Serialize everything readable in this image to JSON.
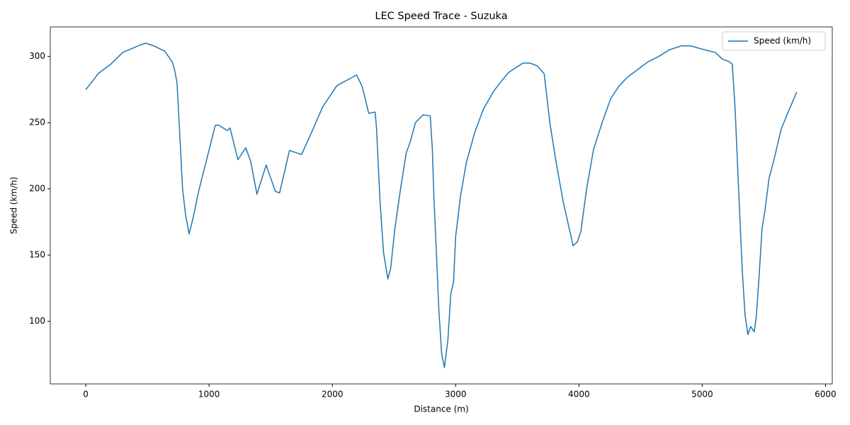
{
  "chart_data": {
    "type": "line",
    "title": "LEC Speed Trace - Suzuka",
    "x_label": "Distance (m)",
    "y_label": "Speed (km/h)",
    "xlim": [
      -288,
      6055
    ],
    "ylim": [
      52.7,
      322.3
    ],
    "xticks": [
      0,
      1000,
      2000,
      3000,
      4000,
      5000,
      6000
    ],
    "yticks": [
      100,
      150,
      200,
      250,
      300
    ],
    "grid": false,
    "legend": "upper-right",
    "series": [
      {
        "name": "Speed (km/h)",
        "color": "#1f77b4",
        "x": [
          0,
          60,
          100,
          200,
          300,
          400,
          450,
          488,
          550,
          640,
          700,
          720,
          740,
          760,
          785,
          810,
          838,
          870,
          920,
          980,
          1010,
          1050,
          1080,
          1148,
          1170,
          1234,
          1297,
          1337,
          1388,
          1463,
          1538,
          1572,
          1652,
          1750,
          1824,
          1922,
          2037,
          2197,
          2243,
          2295,
          2347,
          2358,
          2387,
          2415,
          2450,
          2473,
          2507,
          2553,
          2599,
          2633,
          2674,
          2737,
          2794,
          2811,
          2823,
          2840,
          2863,
          2886,
          2909,
          2937,
          2960,
          2983,
          3000,
          3040,
          3087,
          3156,
          3224,
          3310,
          3385,
          3431,
          3546,
          3603,
          3660,
          3718,
          3764,
          3815,
          3873,
          3953,
          3987,
          4016,
          4062,
          4119,
          4188,
          4257,
          4320,
          4389,
          4475,
          4561,
          4647,
          4733,
          4831,
          4905,
          5020,
          5106,
          5164,
          5221,
          5244,
          5267,
          5295,
          5324,
          5347,
          5370,
          5393,
          5422,
          5439,
          5462,
          5485,
          5508,
          5542,
          5577,
          5640,
          5697,
          5766
        ],
        "values": [
          275,
          282,
          287,
          294,
          303,
          307,
          309,
          310,
          308,
          304,
          296,
          290,
          280,
          245,
          200,
          180,
          166,
          178,
          200,
          222,
          233,
          248,
          248,
          244,
          246,
          222,
          231,
          221,
          196,
          218,
          198,
          197,
          229,
          226,
          241,
          262,
          278,
          286,
          277,
          257,
          258,
          246,
          190,
          152,
          132,
          140,
          170,
          200,
          227,
          236,
          250,
          256,
          255,
          230,
          195,
          160,
          110,
          76,
          65,
          86,
          120,
          130,
          164,
          195,
          220,
          243,
          260,
          274,
          283,
          288,
          295,
          295,
          293,
          287,
          250,
          220,
          190,
          157,
          160,
          168,
          200,
          230,
          250,
          268,
          277,
          284,
          290,
          296,
          300,
          305,
          308,
          308,
          305,
          303,
          298,
          296,
          294,
          260,
          200,
          140,
          105,
          90,
          96,
          92,
          104,
          135,
          170,
          183,
          208,
          220,
          245,
          258,
          273
        ]
      }
    ]
  }
}
